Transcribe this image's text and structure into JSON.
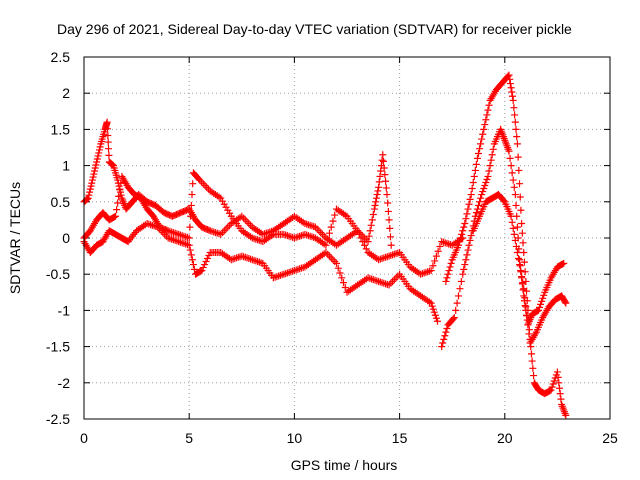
{
  "chart_data": {
    "type": "scatter",
    "title": "Day 296 of 2021, Sidereal Day-to-day VTEC variation (SDTVAR) for receiver pickle",
    "xlabel": "GPS time / hours",
    "ylabel": "SDTVAR / TECUs",
    "xlim": [
      0,
      25
    ],
    "ylim": [
      -2.5,
      2.5
    ],
    "xticks": [
      0,
      5,
      10,
      15,
      20,
      25
    ],
    "xtick_labels": [
      "0",
      "5",
      "10",
      "15",
      "20",
      "25"
    ],
    "yticks": [
      -2.5,
      -2,
      -1.5,
      -1,
      -0.5,
      0,
      0.5,
      1,
      1.5,
      2,
      2.5
    ],
    "ytick_labels": [
      "-2.5",
      "-2",
      "-1.5",
      "-1",
      "-0.5",
      "0",
      "0.5",
      "1",
      "1.5",
      "2",
      "2.5"
    ],
    "grid": true,
    "marker": "+",
    "color": "#ff0000",
    "series": [
      {
        "name": "track-a",
        "points": [
          [
            0,
            0.5
          ],
          [
            0.2,
            0.55
          ],
          [
            0.4,
            0.8
          ],
          [
            0.6,
            1.05
          ],
          [
            0.8,
            1.3
          ],
          [
            1.0,
            1.5
          ],
          [
            1.1,
            1.6
          ],
          [
            1.2,
            1.05
          ],
          [
            1.4,
            1.0
          ],
          [
            1.6,
            0.8
          ],
          [
            1.8,
            0.55
          ],
          [
            2.0,
            0.4
          ],
          [
            2.3,
            0.5
          ],
          [
            2.6,
            0.6
          ],
          [
            3.0,
            0.5
          ],
          [
            3.4,
            0.45
          ],
          [
            3.8,
            0.35
          ],
          [
            4.2,
            0.3
          ],
          [
            4.6,
            0.35
          ],
          [
            5.0,
            0.4
          ],
          [
            5.3,
            0.25
          ],
          [
            5.6,
            0.15
          ],
          [
            6.0,
            0.1
          ],
          [
            6.5,
            0.05
          ],
          [
            7.0,
            0.2
          ],
          [
            7.5,
            0.3
          ],
          [
            8.0,
            0.15
          ],
          [
            8.5,
            0.05
          ],
          [
            9.0,
            0.1
          ],
          [
            9.5,
            0.2
          ],
          [
            10.0,
            0.3
          ],
          [
            10.5,
            0.2
          ],
          [
            11.0,
            0.15
          ],
          [
            11.5,
            0.0
          ],
          [
            12.0,
            -0.1
          ],
          [
            12.5,
            0.0
          ],
          [
            13.0,
            0.1
          ],
          [
            13.5,
            -0.05
          ],
          [
            13.8,
            0.4
          ],
          [
            14.0,
            0.7
          ],
          [
            14.2,
            1.15
          ],
          [
            14.4,
            0.6
          ],
          [
            14.6,
            -0.1
          ]
        ]
      },
      {
        "name": "track-b",
        "points": [
          [
            0,
            0.0
          ],
          [
            0.3,
            0.1
          ],
          [
            0.6,
            0.25
          ],
          [
            0.9,
            0.35
          ],
          [
            1.2,
            0.25
          ],
          [
            1.5,
            0.3
          ],
          [
            1.8,
            0.85
          ],
          [
            2.1,
            0.7
          ],
          [
            2.4,
            0.6
          ],
          [
            2.7,
            0.55
          ],
          [
            3.0,
            0.4
          ],
          [
            3.3,
            0.3
          ],
          [
            3.6,
            0.15
          ],
          [
            4.0,
            0.1
          ],
          [
            4.5,
            0.05
          ],
          [
            5.0,
            0.0
          ],
          [
            5.2,
            0.9
          ],
          [
            5.5,
            0.8
          ],
          [
            6.0,
            0.65
          ],
          [
            6.5,
            0.55
          ],
          [
            7.0,
            0.3
          ],
          [
            7.5,
            0.1
          ],
          [
            8.0,
            0.0
          ],
          [
            8.5,
            -0.05
          ],
          [
            9.0,
            0.05
          ],
          [
            9.5,
            0.05
          ],
          [
            10.0,
            0.0
          ],
          [
            10.5,
            0.05
          ],
          [
            11.0,
            0.0
          ],
          [
            11.5,
            -0.1
          ],
          [
            12.0,
            0.4
          ],
          [
            12.5,
            0.3
          ],
          [
            13.0,
            0.1
          ],
          [
            13.5,
            -0.2
          ],
          [
            14.0,
            -0.3
          ],
          [
            14.5,
            -0.25
          ],
          [
            15.0,
            -0.2
          ],
          [
            15.5,
            -0.4
          ],
          [
            16.0,
            -0.5
          ],
          [
            16.5,
            -0.45
          ],
          [
            17.0,
            -0.05
          ],
          [
            17.5,
            -0.1
          ],
          [
            18.0,
            0.0
          ]
        ]
      },
      {
        "name": "track-c",
        "points": [
          [
            0,
            -0.05
          ],
          [
            0.3,
            -0.2
          ],
          [
            0.6,
            -0.1
          ],
          [
            0.9,
            -0.05
          ],
          [
            1.2,
            0.1
          ],
          [
            1.5,
            0.05
          ],
          [
            1.8,
            0.0
          ],
          [
            2.1,
            -0.05
          ],
          [
            2.5,
            0.1
          ],
          [
            3.0,
            0.2
          ],
          [
            3.5,
            0.15
          ],
          [
            4.0,
            0.0
          ],
          [
            4.5,
            -0.05
          ],
          [
            5.0,
            -0.1
          ],
          [
            5.3,
            -0.5
          ],
          [
            5.6,
            -0.45
          ],
          [
            6.0,
            -0.2
          ],
          [
            6.5,
            -0.2
          ],
          [
            7.0,
            -0.3
          ],
          [
            7.5,
            -0.25
          ],
          [
            8.0,
            -0.3
          ],
          [
            8.5,
            -0.35
          ],
          [
            9.0,
            -0.55
          ],
          [
            9.5,
            -0.5
          ],
          [
            10.0,
            -0.45
          ],
          [
            10.5,
            -0.4
          ],
          [
            11.0,
            -0.3
          ],
          [
            11.5,
            -0.2
          ],
          [
            12.0,
            -0.35
          ],
          [
            12.5,
            -0.75
          ],
          [
            13.0,
            -0.65
          ],
          [
            13.5,
            -0.55
          ],
          [
            14.0,
            -0.6
          ],
          [
            14.5,
            -0.65
          ],
          [
            15.0,
            -0.5
          ],
          [
            15.5,
            -0.7
          ],
          [
            16.0,
            -0.8
          ],
          [
            16.5,
            -0.9
          ],
          [
            16.8,
            -1.15
          ]
        ]
      },
      {
        "name": "track-d",
        "points": [
          [
            17.0,
            -1.5
          ],
          [
            17.3,
            -1.2
          ],
          [
            17.6,
            -1.1
          ],
          [
            18.0,
            -0.5
          ],
          [
            18.3,
            -0.1
          ],
          [
            18.6,
            0.3
          ],
          [
            18.9,
            0.6
          ],
          [
            19.2,
            0.85
          ],
          [
            19.5,
            1.3
          ],
          [
            19.8,
            1.5
          ],
          [
            20.0,
            1.35
          ],
          [
            20.2,
            1.2
          ],
          [
            20.5,
            0.6
          ],
          [
            20.7,
            -0.3
          ],
          [
            20.9,
            -0.8
          ],
          [
            21.1,
            -1.2
          ],
          [
            21.3,
            -1.05
          ],
          [
            21.6,
            -1.0
          ],
          [
            21.9,
            -0.75
          ],
          [
            22.2,
            -0.55
          ],
          [
            22.5,
            -0.4
          ],
          [
            22.8,
            -0.35
          ]
        ]
      },
      {
        "name": "track-e",
        "points": [
          [
            17.2,
            -0.6
          ],
          [
            17.5,
            -0.3
          ],
          [
            17.8,
            -0.1
          ],
          [
            18.1,
            0.2
          ],
          [
            18.4,
            0.6
          ],
          [
            18.7,
            1.1
          ],
          [
            19.0,
            1.5
          ],
          [
            19.3,
            1.9
          ],
          [
            19.6,
            2.05
          ],
          [
            19.9,
            2.15
          ],
          [
            20.2,
            2.25
          ],
          [
            20.4,
            1.9
          ],
          [
            20.6,
            1.3
          ],
          [
            20.8,
            0.2
          ],
          [
            21.0,
            -0.6
          ],
          [
            21.2,
            -1.4
          ],
          [
            21.4,
            -2.0
          ],
          [
            21.6,
            -2.1
          ],
          [
            21.9,
            -2.15
          ],
          [
            22.2,
            -2.1
          ],
          [
            22.5,
            -1.85
          ],
          [
            22.7,
            -2.3
          ],
          [
            22.9,
            -2.45
          ]
        ]
      },
      {
        "name": "track-f",
        "points": [
          [
            18.5,
            0.1
          ],
          [
            18.8,
            0.3
          ],
          [
            19.1,
            0.5
          ],
          [
            19.4,
            0.55
          ],
          [
            19.7,
            0.6
          ],
          [
            20.0,
            0.5
          ],
          [
            20.3,
            0.3
          ],
          [
            20.6,
            -0.2
          ],
          [
            20.9,
            -0.7
          ],
          [
            21.2,
            -1.45
          ],
          [
            21.5,
            -1.3
          ],
          [
            21.8,
            -1.1
          ],
          [
            22.1,
            -0.95
          ],
          [
            22.4,
            -0.85
          ],
          [
            22.7,
            -0.8
          ],
          [
            22.9,
            -0.9
          ]
        ]
      }
    ]
  }
}
